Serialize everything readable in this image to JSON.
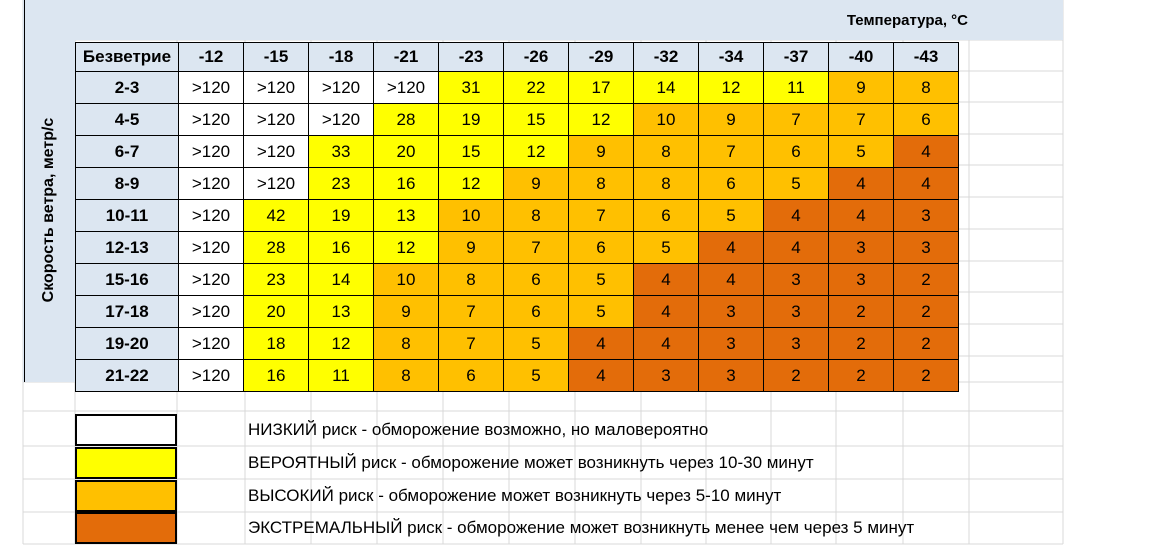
{
  "temperature_title": "Температура, °С",
  "wind_title": "Скорость ветра, метр/с",
  "corner_label": "Безветрие",
  "temperatures": [
    "-12",
    "-15",
    "-18",
    "-21",
    "-23",
    "-26",
    "-29",
    "-32",
    "-34",
    "-37",
    "-40",
    "-43"
  ],
  "rows": [
    {
      "wind": "2-3",
      "values": [
        ">120",
        ">120",
        ">120",
        ">120",
        "31",
        "22",
        "17",
        "14",
        "12",
        "11",
        "9",
        "8"
      ],
      "risk": [
        "low",
        "low",
        "low",
        "low",
        "prob",
        "prob",
        "prob",
        "prob",
        "prob",
        "prob",
        "high",
        "high"
      ]
    },
    {
      "wind": "4-5",
      "values": [
        ">120",
        ">120",
        ">120",
        "28",
        "19",
        "15",
        "12",
        "10",
        "9",
        "7",
        "7",
        "6"
      ],
      "risk": [
        "low",
        "low",
        "low",
        "prob",
        "prob",
        "prob",
        "prob",
        "high",
        "high",
        "high",
        "high",
        "high"
      ]
    },
    {
      "wind": "6-7",
      "values": [
        ">120",
        ">120",
        "33",
        "20",
        "15",
        "12",
        "9",
        "8",
        "7",
        "6",
        "5",
        "4"
      ],
      "risk": [
        "low",
        "low",
        "prob",
        "prob",
        "prob",
        "prob",
        "high",
        "high",
        "high",
        "high",
        "high",
        "ext"
      ]
    },
    {
      "wind": "8-9",
      "values": [
        ">120",
        ">120",
        "23",
        "16",
        "12",
        "9",
        "8",
        "8",
        "6",
        "5",
        "4",
        "4"
      ],
      "risk": [
        "low",
        "low",
        "prob",
        "prob",
        "prob",
        "high",
        "high",
        "high",
        "high",
        "high",
        "ext",
        "ext"
      ]
    },
    {
      "wind": "10-11",
      "values": [
        ">120",
        "42",
        "19",
        "13",
        "10",
        "8",
        "7",
        "6",
        "5",
        "4",
        "4",
        "3"
      ],
      "risk": [
        "low",
        "prob",
        "prob",
        "prob",
        "high",
        "high",
        "high",
        "high",
        "high",
        "ext",
        "ext",
        "ext"
      ]
    },
    {
      "wind": "12-13",
      "values": [
        ">120",
        "28",
        "16",
        "12",
        "9",
        "7",
        "6",
        "5",
        "4",
        "4",
        "3",
        "3"
      ],
      "risk": [
        "low",
        "prob",
        "prob",
        "prob",
        "high",
        "high",
        "high",
        "high",
        "ext",
        "ext",
        "ext",
        "ext"
      ]
    },
    {
      "wind": "15-16",
      "values": [
        ">120",
        "23",
        "14",
        "10",
        "8",
        "6",
        "5",
        "4",
        "4",
        "3",
        "3",
        "2"
      ],
      "risk": [
        "low",
        "prob",
        "prob",
        "high",
        "high",
        "high",
        "high",
        "ext",
        "ext",
        "ext",
        "ext",
        "ext"
      ]
    },
    {
      "wind": "17-18",
      "values": [
        ">120",
        "20",
        "13",
        "9",
        "7",
        "6",
        "5",
        "4",
        "3",
        "3",
        "2",
        "2"
      ],
      "risk": [
        "low",
        "prob",
        "prob",
        "high",
        "high",
        "high",
        "high",
        "ext",
        "ext",
        "ext",
        "ext",
        "ext"
      ]
    },
    {
      "wind": "19-20",
      "values": [
        ">120",
        "18",
        "12",
        "8",
        "7",
        "5",
        "4",
        "4",
        "3",
        "3",
        "2",
        "2"
      ],
      "risk": [
        "low",
        "prob",
        "prob",
        "high",
        "high",
        "high",
        "ext",
        "ext",
        "ext",
        "ext",
        "ext",
        "ext"
      ]
    },
    {
      "wind": "21-22",
      "values": [
        ">120",
        "16",
        "11",
        "8",
        "6",
        "5",
        "4",
        "3",
        "3",
        "2",
        "2",
        "2"
      ],
      "risk": [
        "low",
        "prob",
        "prob",
        "high",
        "high",
        "high",
        "ext",
        "ext",
        "ext",
        "ext",
        "ext",
        "ext"
      ]
    }
  ],
  "legend": [
    {
      "risk": "low",
      "color": "#ffffff",
      "text": "НИЗКИЙ риск - обморожение возможно, но маловероятно"
    },
    {
      "risk": "prob",
      "color": "#ffff00",
      "text": "ВЕРОЯТНЫЙ риск - обморожение может возникнуть через 10-30 минут"
    },
    {
      "risk": "high",
      "color": "#ffc000",
      "text": "ВЫСОКИЙ риск - обморожение может возникнуть через 5-10 минут"
    },
    {
      "risk": "ext",
      "color": "#e36c0a",
      "text": "ЭКСТРЕМАЛЬНЫЙ риск - обморожение может возникнуть менее чем через 5 минут"
    }
  ]
}
